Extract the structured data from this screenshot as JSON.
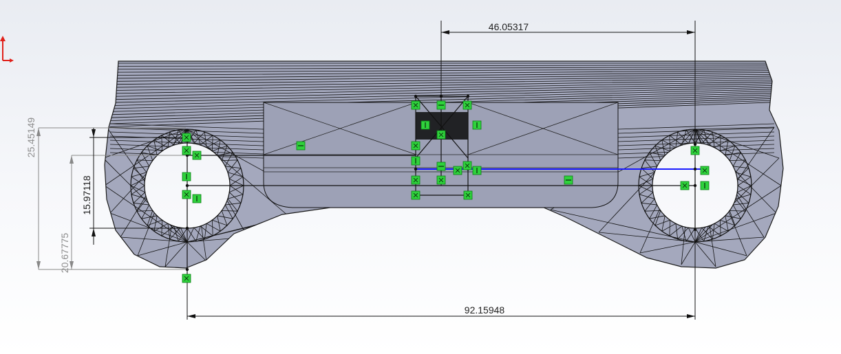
{
  "dimensions": {
    "top_horizontal": "46.05317",
    "bottom_horizontal": "92.15948",
    "left_vertical_outer": "25.45149",
    "left_vertical_middle": "20.67775",
    "left_vertical_inner": "15.97118"
  },
  "colors": {
    "part_fill": "#a4a8bd",
    "mesh_line": "#111111",
    "sketch_blue": "#1a1aff",
    "relation_green": "#2fd23c",
    "triad_red": "#e0201a"
  },
  "icons": {
    "triad": "coordinate-triad-icon",
    "relation": "sketch-relation-icon"
  }
}
